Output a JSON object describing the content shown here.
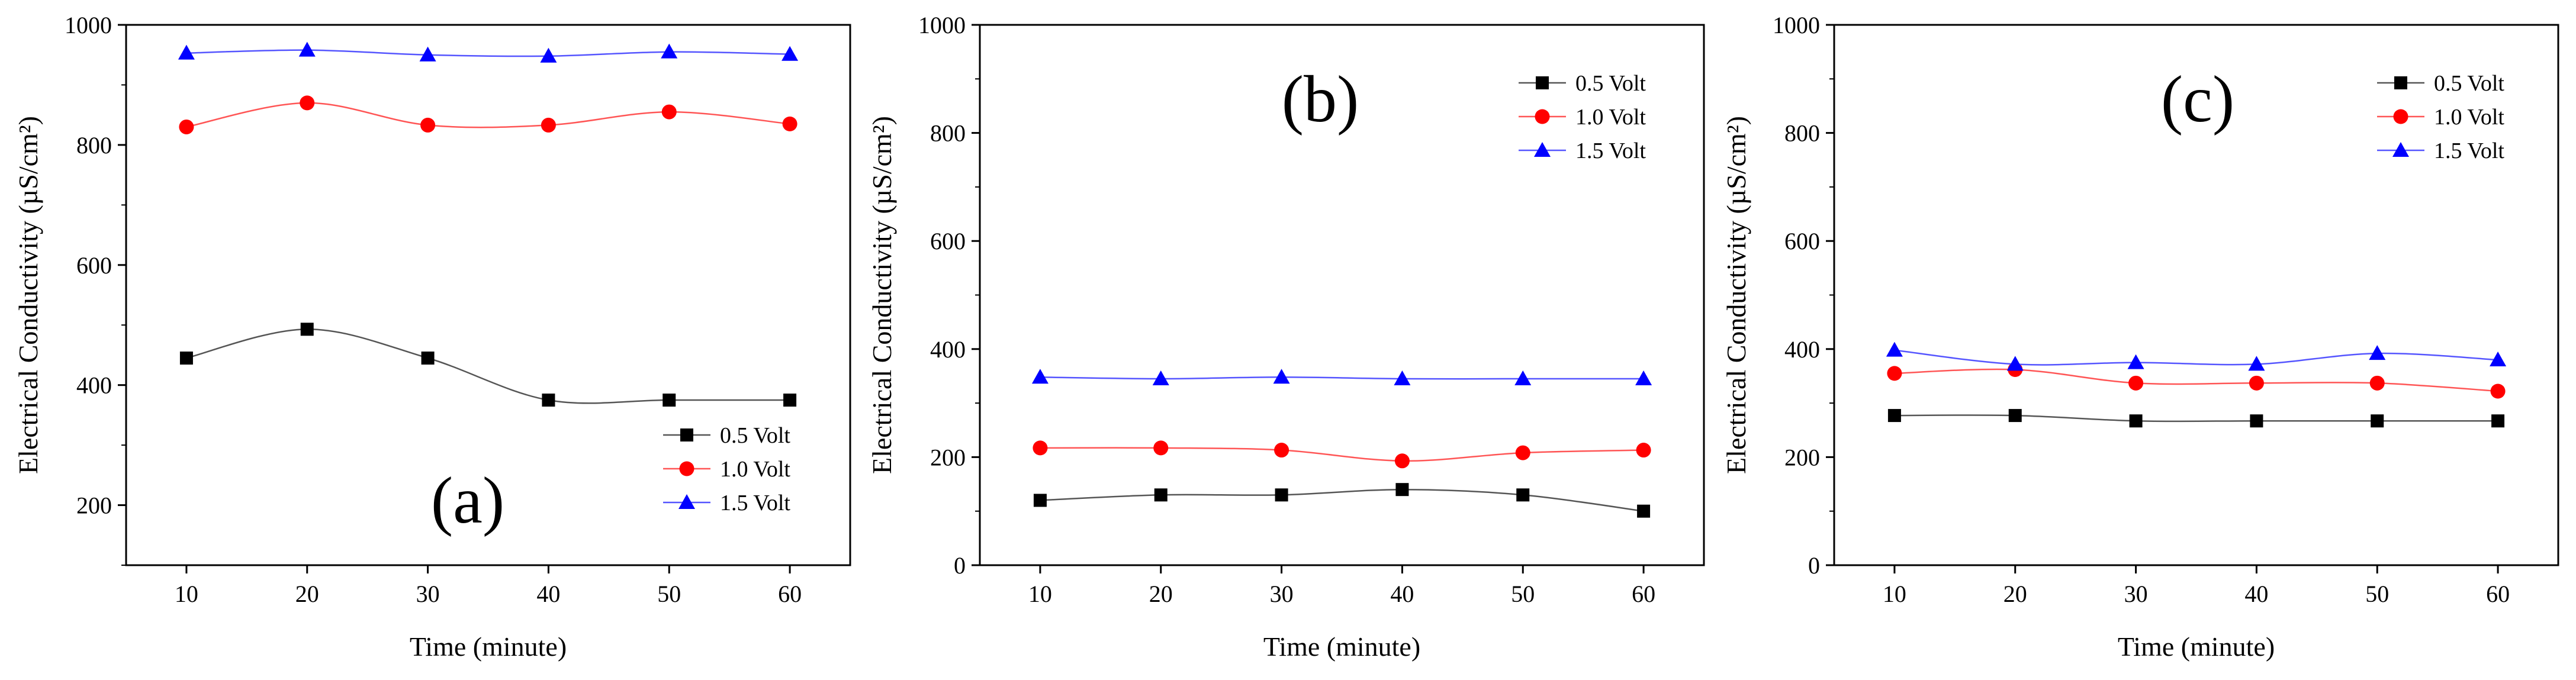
{
  "chart_data": [
    {
      "type": "line",
      "panel_label": "(a)",
      "xlabel": "Time (minute)",
      "ylabel": "Electrical Conductivity (µS/cm²)",
      "x": [
        10,
        20,
        30,
        40,
        50,
        60
      ],
      "xlim": [
        5,
        65
      ],
      "ylim": [
        100,
        1000
      ],
      "yticks": [
        200,
        400,
        600,
        800,
        1000
      ],
      "legend_position": "bottom-right",
      "series": [
        {
          "name": "0.5 Volt",
          "marker": "square",
          "line_color": "#555555",
          "marker_color": "#000000",
          "values": [
            445,
            493,
            445,
            375,
            375,
            375
          ]
        },
        {
          "name": "1.0 Volt",
          "marker": "circle",
          "line_color": "#ff5555",
          "marker_color": "#ff0000",
          "values": [
            830,
            870,
            833,
            833,
            855,
            835
          ]
        },
        {
          "name": "1.5 Volt",
          "marker": "triangle",
          "line_color": "#5555ff",
          "marker_color": "#0000ff",
          "values": [
            953,
            958,
            950,
            948,
            955,
            951
          ]
        }
      ]
    },
    {
      "type": "line",
      "panel_label": "(b)",
      "xlabel": "Time (minute)",
      "ylabel": "Electrical Conductivity (µS/cm²)",
      "x": [
        10,
        20,
        30,
        40,
        50,
        60
      ],
      "xlim": [
        5,
        65
      ],
      "ylim": [
        0,
        1000
      ],
      "yticks": [
        0,
        200,
        400,
        600,
        800,
        1000
      ],
      "legend_position": "top-right",
      "series": [
        {
          "name": "0.5 Volt",
          "marker": "square",
          "line_color": "#555555",
          "marker_color": "#000000",
          "values": [
            120,
            130,
            130,
            140,
            130,
            100
          ]
        },
        {
          "name": "1.0 Volt",
          "marker": "circle",
          "line_color": "#ff5555",
          "marker_color": "#ff0000",
          "values": [
            217,
            217,
            213,
            193,
            208,
            213
          ]
        },
        {
          "name": "1.5 Volt",
          "marker": "triangle",
          "line_color": "#5555ff",
          "marker_color": "#0000ff",
          "values": [
            348,
            345,
            348,
            345,
            345,
            345
          ]
        }
      ]
    },
    {
      "type": "line",
      "panel_label": "(c)",
      "xlabel": "Time (minute)",
      "ylabel": "Electrical Conductivity (µS/cm²)",
      "x": [
        10,
        20,
        30,
        40,
        50,
        60
      ],
      "xlim": [
        5,
        65
      ],
      "ylim": [
        0,
        1000
      ],
      "yticks": [
        0,
        200,
        400,
        600,
        800,
        1000
      ],
      "legend_position": "top-right",
      "series": [
        {
          "name": "0.5 Volt",
          "marker": "square",
          "line_color": "#555555",
          "marker_color": "#000000",
          "values": [
            277,
            277,
            267,
            267,
            267,
            267
          ]
        },
        {
          "name": "1.0 Volt",
          "marker": "circle",
          "line_color": "#ff5555",
          "marker_color": "#ff0000",
          "values": [
            355,
            362,
            337,
            337,
            337,
            322
          ]
        },
        {
          "name": "1.5 Volt",
          "marker": "triangle",
          "line_color": "#5555ff",
          "marker_color": "#0000ff",
          "values": [
            398,
            372,
            375,
            372,
            392,
            380
          ]
        }
      ]
    }
  ]
}
